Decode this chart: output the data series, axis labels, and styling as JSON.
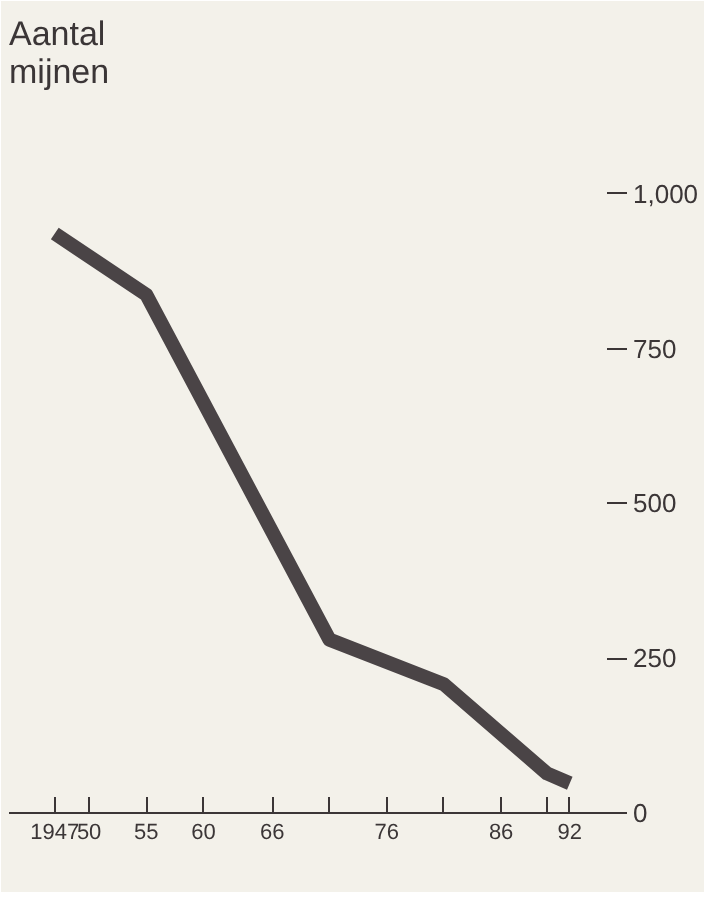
{
  "chart_data": {
    "type": "line",
    "ylabel": "Aantal mijnen",
    "x": [
      1947,
      1955,
      1971,
      1981,
      1990,
      1992
    ],
    "series": [
      {
        "color": "#4a4446",
        "values": [
          936,
          837,
          280,
          208,
          64,
          48
        ]
      }
    ],
    "xlim": [
      1943,
      1997
    ],
    "ylim": [
      0,
      1150
    ],
    "xticks": [
      {
        "value": 1947,
        "label": "1947"
      },
      {
        "value": 1950,
        "label": "50"
      },
      {
        "value": 1955,
        "label": "55"
      },
      {
        "value": 1960,
        "label": "60"
      },
      {
        "value": 1966,
        "label": "66"
      },
      {
        "value": 1971,
        "label": null
      },
      {
        "value": 1976,
        "label": "76"
      },
      {
        "value": 1981,
        "label": null
      },
      {
        "value": 1986,
        "label": "86"
      },
      {
        "value": 1990,
        "label": null
      },
      {
        "value": 1992,
        "label": "92"
      }
    ],
    "yticks": [
      0,
      250,
      500,
      750,
      {
        "value": 1000,
        "label": "1,000"
      }
    ],
    "grid": false,
    "marker": "none",
    "line_style": "solid"
  }
}
